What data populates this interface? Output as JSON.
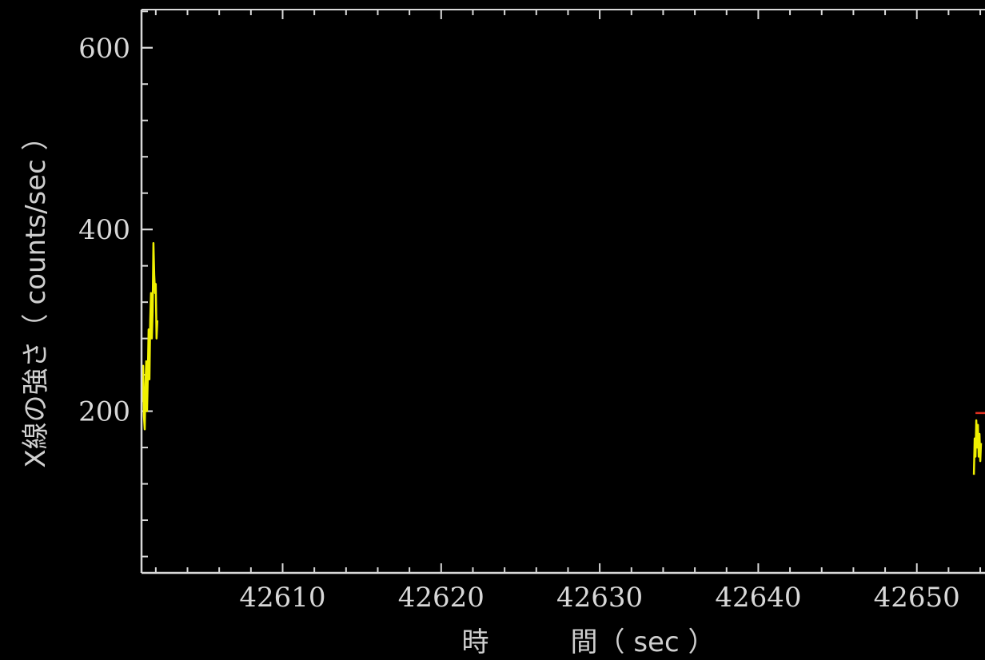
{
  "chart_data": {
    "type": "line",
    "title": "",
    "xlabel": "時　　　間（ sec ）",
    "ylabel": "X線の強さ（ counts/sec ）",
    "xlim": [
      42601.1,
      42654.3
    ],
    "ylim": [
      22,
      642
    ],
    "x_major_ticks": [
      42610,
      42620,
      42630,
      42640,
      42650
    ],
    "x_tick_labels": [
      "42610",
      "42620",
      "42630",
      "42640",
      "42650"
    ],
    "x_minor_step": 2,
    "y_major_ticks": [
      200,
      400,
      600
    ],
    "y_tick_labels": [
      "200",
      "400",
      "600"
    ],
    "y_minor_step": 40,
    "grid": false,
    "legend": "none",
    "colors": {
      "background": "#000000",
      "axis": "#d8d8d8",
      "text": "#d8d8d8"
    },
    "series": [
      {
        "color": "#f0f000",
        "points": [
          [
            42601.15,
            210
          ],
          [
            42601.2,
            250
          ],
          [
            42601.25,
            195
          ],
          [
            42601.3,
            180
          ],
          [
            42601.35,
            230
          ],
          [
            42601.4,
            255
          ],
          [
            42601.45,
            200
          ],
          [
            42601.5,
            240
          ],
          [
            42601.55,
            290
          ],
          [
            42601.6,
            235
          ],
          [
            42601.65,
            300
          ],
          [
            42601.7,
            330
          ],
          [
            42601.75,
            280
          ],
          [
            42601.8,
            310
          ],
          [
            42601.85,
            385
          ],
          [
            42601.9,
            350
          ],
          [
            42601.95,
            330
          ],
          [
            42602.0,
            340
          ],
          [
            42602.05,
            280
          ],
          [
            42602.1,
            300
          ]
        ]
      },
      {
        "color": "#f0f000",
        "points": [
          [
            42653.6,
            130
          ],
          [
            42653.65,
            170
          ],
          [
            42653.7,
            150
          ],
          [
            42653.75,
            190
          ],
          [
            42653.8,
            160
          ],
          [
            42653.85,
            185
          ],
          [
            42653.9,
            150
          ],
          [
            42653.95,
            175
          ],
          [
            42654.0,
            145
          ],
          [
            42654.05,
            165
          ]
        ]
      },
      {
        "color": "#e03020",
        "points": [
          [
            42653.7,
            198
          ],
          [
            42654.3,
            198
          ]
        ]
      }
    ]
  }
}
